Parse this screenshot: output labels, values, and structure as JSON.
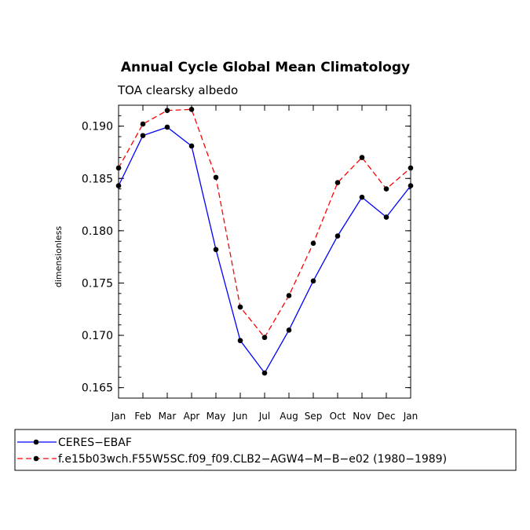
{
  "chart_data": {
    "type": "line",
    "title": "Annual Cycle Global Mean Climatology",
    "subtitle": "TOA clearsky albedo",
    "xlabel": "",
    "ylabel": "dimensionless",
    "categories": [
      "Jan",
      "Feb",
      "Mar",
      "Apr",
      "May",
      "Jun",
      "Jul",
      "Aug",
      "Sep",
      "Oct",
      "Nov",
      "Dec",
      "Jan"
    ],
    "ylim": [
      0.164,
      0.192
    ],
    "yticks": [
      "0.165",
      "0.170",
      "0.175",
      "0.180",
      "0.185",
      "0.190"
    ],
    "legend_position": "bottom",
    "series": [
      {
        "name": "CERES−EBAF",
        "color": "#0000ff",
        "line_style": "solid",
        "values": [
          0.1843,
          0.1891,
          0.1899,
          0.1881,
          0.1782,
          0.1695,
          0.1664,
          0.1705,
          0.1752,
          0.1795,
          0.1832,
          0.1813,
          0.1843
        ]
      },
      {
        "name": "f.e15b03wch.F55W5SC.f09_f09.CLB2−AGW4−M−B−e02 (1980−1989)",
        "color": "#ff0000",
        "line_style": "dashed",
        "values": [
          0.186,
          0.1902,
          0.1915,
          0.1916,
          0.1851,
          0.1727,
          0.1698,
          0.1738,
          0.1788,
          0.1846,
          0.187,
          0.184,
          0.186
        ]
      }
    ]
  }
}
